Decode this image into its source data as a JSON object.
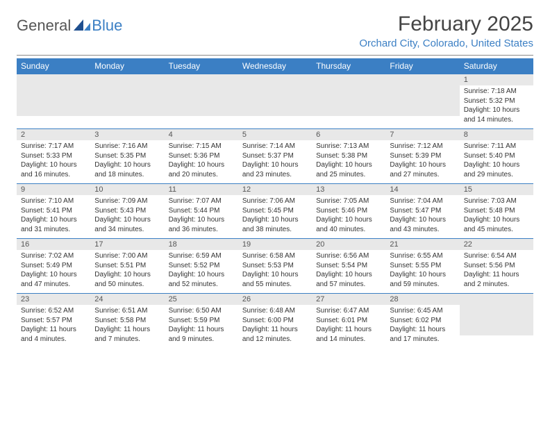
{
  "logo": {
    "word1": "General",
    "word2": "Blue"
  },
  "title": "February 2025",
  "location": "Orchard City, Colorado, United States",
  "colors": {
    "header_bg": "#3b7fc4",
    "header_text": "#ffffff",
    "daynum_bg": "#e8e8e8",
    "body_text": "#333333",
    "divider": "#888888",
    "logo_gray": "#555555",
    "logo_blue": "#3b7fc4"
  },
  "daysOfWeek": [
    "Sunday",
    "Monday",
    "Tuesday",
    "Wednesday",
    "Thursday",
    "Friday",
    "Saturday"
  ],
  "weeks": [
    [
      {
        "n": "",
        "sr": "",
        "ss": "",
        "dl": ""
      },
      {
        "n": "",
        "sr": "",
        "ss": "",
        "dl": ""
      },
      {
        "n": "",
        "sr": "",
        "ss": "",
        "dl": ""
      },
      {
        "n": "",
        "sr": "",
        "ss": "",
        "dl": ""
      },
      {
        "n": "",
        "sr": "",
        "ss": "",
        "dl": ""
      },
      {
        "n": "",
        "sr": "",
        "ss": "",
        "dl": ""
      },
      {
        "n": "1",
        "sr": "Sunrise: 7:18 AM",
        "ss": "Sunset: 5:32 PM",
        "dl": "Daylight: 10 hours and 14 minutes."
      }
    ],
    [
      {
        "n": "2",
        "sr": "Sunrise: 7:17 AM",
        "ss": "Sunset: 5:33 PM",
        "dl": "Daylight: 10 hours and 16 minutes."
      },
      {
        "n": "3",
        "sr": "Sunrise: 7:16 AM",
        "ss": "Sunset: 5:35 PM",
        "dl": "Daylight: 10 hours and 18 minutes."
      },
      {
        "n": "4",
        "sr": "Sunrise: 7:15 AM",
        "ss": "Sunset: 5:36 PM",
        "dl": "Daylight: 10 hours and 20 minutes."
      },
      {
        "n": "5",
        "sr": "Sunrise: 7:14 AM",
        "ss": "Sunset: 5:37 PM",
        "dl": "Daylight: 10 hours and 23 minutes."
      },
      {
        "n": "6",
        "sr": "Sunrise: 7:13 AM",
        "ss": "Sunset: 5:38 PM",
        "dl": "Daylight: 10 hours and 25 minutes."
      },
      {
        "n": "7",
        "sr": "Sunrise: 7:12 AM",
        "ss": "Sunset: 5:39 PM",
        "dl": "Daylight: 10 hours and 27 minutes."
      },
      {
        "n": "8",
        "sr": "Sunrise: 7:11 AM",
        "ss": "Sunset: 5:40 PM",
        "dl": "Daylight: 10 hours and 29 minutes."
      }
    ],
    [
      {
        "n": "9",
        "sr": "Sunrise: 7:10 AM",
        "ss": "Sunset: 5:41 PM",
        "dl": "Daylight: 10 hours and 31 minutes."
      },
      {
        "n": "10",
        "sr": "Sunrise: 7:09 AM",
        "ss": "Sunset: 5:43 PM",
        "dl": "Daylight: 10 hours and 34 minutes."
      },
      {
        "n": "11",
        "sr": "Sunrise: 7:07 AM",
        "ss": "Sunset: 5:44 PM",
        "dl": "Daylight: 10 hours and 36 minutes."
      },
      {
        "n": "12",
        "sr": "Sunrise: 7:06 AM",
        "ss": "Sunset: 5:45 PM",
        "dl": "Daylight: 10 hours and 38 minutes."
      },
      {
        "n": "13",
        "sr": "Sunrise: 7:05 AM",
        "ss": "Sunset: 5:46 PM",
        "dl": "Daylight: 10 hours and 40 minutes."
      },
      {
        "n": "14",
        "sr": "Sunrise: 7:04 AM",
        "ss": "Sunset: 5:47 PM",
        "dl": "Daylight: 10 hours and 43 minutes."
      },
      {
        "n": "15",
        "sr": "Sunrise: 7:03 AM",
        "ss": "Sunset: 5:48 PM",
        "dl": "Daylight: 10 hours and 45 minutes."
      }
    ],
    [
      {
        "n": "16",
        "sr": "Sunrise: 7:02 AM",
        "ss": "Sunset: 5:49 PM",
        "dl": "Daylight: 10 hours and 47 minutes."
      },
      {
        "n": "17",
        "sr": "Sunrise: 7:00 AM",
        "ss": "Sunset: 5:51 PM",
        "dl": "Daylight: 10 hours and 50 minutes."
      },
      {
        "n": "18",
        "sr": "Sunrise: 6:59 AM",
        "ss": "Sunset: 5:52 PM",
        "dl": "Daylight: 10 hours and 52 minutes."
      },
      {
        "n": "19",
        "sr": "Sunrise: 6:58 AM",
        "ss": "Sunset: 5:53 PM",
        "dl": "Daylight: 10 hours and 55 minutes."
      },
      {
        "n": "20",
        "sr": "Sunrise: 6:56 AM",
        "ss": "Sunset: 5:54 PM",
        "dl": "Daylight: 10 hours and 57 minutes."
      },
      {
        "n": "21",
        "sr": "Sunrise: 6:55 AM",
        "ss": "Sunset: 5:55 PM",
        "dl": "Daylight: 10 hours and 59 minutes."
      },
      {
        "n": "22",
        "sr": "Sunrise: 6:54 AM",
        "ss": "Sunset: 5:56 PM",
        "dl": "Daylight: 11 hours and 2 minutes."
      }
    ],
    [
      {
        "n": "23",
        "sr": "Sunrise: 6:52 AM",
        "ss": "Sunset: 5:57 PM",
        "dl": "Daylight: 11 hours and 4 minutes."
      },
      {
        "n": "24",
        "sr": "Sunrise: 6:51 AM",
        "ss": "Sunset: 5:58 PM",
        "dl": "Daylight: 11 hours and 7 minutes."
      },
      {
        "n": "25",
        "sr": "Sunrise: 6:50 AM",
        "ss": "Sunset: 5:59 PM",
        "dl": "Daylight: 11 hours and 9 minutes."
      },
      {
        "n": "26",
        "sr": "Sunrise: 6:48 AM",
        "ss": "Sunset: 6:00 PM",
        "dl": "Daylight: 11 hours and 12 minutes."
      },
      {
        "n": "27",
        "sr": "Sunrise: 6:47 AM",
        "ss": "Sunset: 6:01 PM",
        "dl": "Daylight: 11 hours and 14 minutes."
      },
      {
        "n": "28",
        "sr": "Sunrise: 6:45 AM",
        "ss": "Sunset: 6:02 PM",
        "dl": "Daylight: 11 hours and 17 minutes."
      },
      {
        "n": "",
        "sr": "",
        "ss": "",
        "dl": ""
      }
    ]
  ]
}
